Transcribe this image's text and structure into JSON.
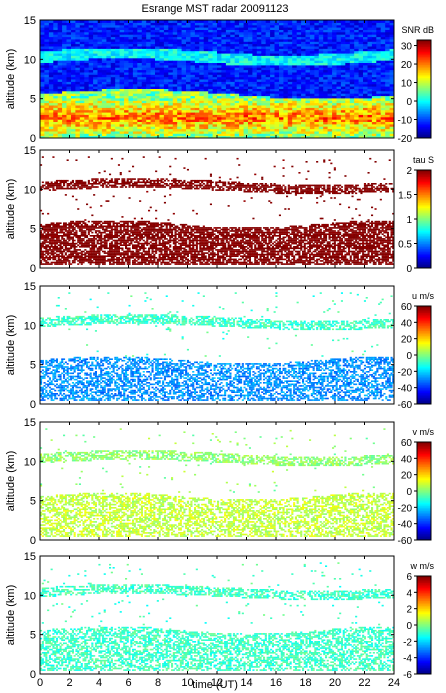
{
  "title": "Esrange MST radar 20091123",
  "xlabel": "time (UT)",
  "ylabel": "altitude (km)",
  "x_ticks": [
    0,
    2,
    4,
    6,
    8,
    10,
    12,
    14,
    16,
    18,
    20,
    22,
    24
  ],
  "y_ticks": [
    0,
    5,
    10,
    15
  ],
  "chart_data": [
    {
      "type": "heatmap",
      "colorbar_label": "SNR dB",
      "colorbar_ticks": [
        30,
        20,
        10,
        0,
        -10,
        -20
      ],
      "clim": [
        -20,
        33
      ],
      "xlim": [
        0,
        24
      ],
      "ylim": [
        0,
        15
      ],
      "layers": [
        {
          "name": "background noise",
          "alt_range": [
            6,
            15
          ],
          "value": -12
        },
        {
          "name": "tropopause layer",
          "alt_range": [
            9.5,
            11
          ],
          "value": -6
        },
        {
          "name": "lower troposphere",
          "alt_range": [
            0.5,
            5.5
          ],
          "value": 18
        }
      ]
    },
    {
      "type": "heatmap",
      "colorbar_label": "tau S",
      "colorbar_ticks": [
        2,
        1.5,
        1,
        0.5,
        0
      ],
      "clim": [
        0,
        2
      ],
      "xlim": [
        0,
        24
      ],
      "ylim": [
        0,
        15
      ],
      "layers": [
        {
          "name": "tropopause layer",
          "alt_range": [
            9.5,
            11
          ],
          "value": 2
        },
        {
          "name": "lower troposphere",
          "alt_range": [
            0.5,
            5.5
          ],
          "value": 2
        }
      ]
    },
    {
      "type": "heatmap",
      "colorbar_label": "u m/s",
      "colorbar_ticks": [
        60,
        40,
        20,
        0,
        -20,
        -40,
        -60
      ],
      "clim": [
        -60,
        60
      ],
      "xlim": [
        0,
        24
      ],
      "ylim": [
        0,
        15
      ],
      "layers": [
        {
          "name": "tropopause layer",
          "alt_range": [
            9.5,
            11
          ],
          "value": -8
        },
        {
          "name": "lower troposphere",
          "alt_range": [
            0.5,
            5.5
          ],
          "value": -28
        }
      ]
    },
    {
      "type": "heatmap",
      "colorbar_label": "v m/s",
      "colorbar_ticks": [
        60,
        40,
        20,
        0,
        -20,
        -40,
        -60
      ],
      "clim": [
        -60,
        60
      ],
      "xlim": [
        0,
        24
      ],
      "ylim": [
        0,
        15
      ],
      "layers": [
        {
          "name": "tropopause layer",
          "alt_range": [
            9.5,
            11
          ],
          "value": 2
        },
        {
          "name": "lower troposphere",
          "alt_range": [
            0.5,
            5.5
          ],
          "value": 8
        }
      ]
    },
    {
      "type": "heatmap",
      "colorbar_label": "w m/s",
      "colorbar_ticks": [
        6,
        4,
        2,
        0,
        -2,
        -4,
        -6
      ],
      "clim": [
        -6,
        6
      ],
      "xlim": [
        0,
        24
      ],
      "ylim": [
        0,
        15
      ],
      "layers": [
        {
          "name": "tropopause layer",
          "alt_range": [
            9.5,
            11
          ],
          "value": -0.8
        },
        {
          "name": "lower troposphere",
          "alt_range": [
            0.5,
            5.5
          ],
          "value": -0.8
        }
      ]
    }
  ]
}
